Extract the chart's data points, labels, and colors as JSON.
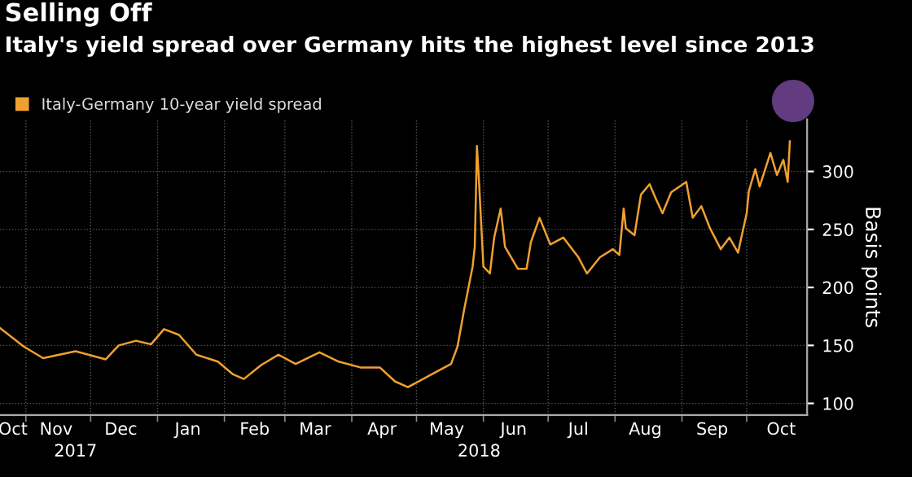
{
  "chart_data": {
    "type": "line",
    "title": "Selling Off",
    "subtitle": "Italy's yield spread over Germany hits the highest level since 2013",
    "ylabel": "Basis points",
    "x": [
      "2017-10-20",
      "2017-10-31",
      "2017-11-09",
      "2017-11-24",
      "2017-12-08",
      "2017-12-14",
      "2017-12-22",
      "2017-12-29",
      "2018-01-04",
      "2018-01-11",
      "2018-01-19",
      "2018-01-29",
      "2018-02-05",
      "2018-02-10",
      "2018-02-18",
      "2018-02-26",
      "2018-03-06",
      "2018-03-17",
      "2018-03-26",
      "2018-04-05",
      "2018-04-14",
      "2018-04-21",
      "2018-04-27",
      "2018-05-08",
      "2018-05-17",
      "2018-05-20",
      "2018-05-23",
      "2018-05-27",
      "2018-05-28",
      "2018-05-29",
      "2018-05-30",
      "2018-06-01",
      "2018-06-04",
      "2018-06-06",
      "2018-06-09",
      "2018-06-11",
      "2018-06-17",
      "2018-06-21",
      "2018-06-23",
      "2018-06-27",
      "2018-07-02",
      "2018-07-08",
      "2018-07-15",
      "2018-07-19",
      "2018-07-25",
      "2018-07-31",
      "2018-08-03",
      "2018-08-05",
      "2018-08-06",
      "2018-08-10",
      "2018-08-13",
      "2018-08-17",
      "2018-08-20",
      "2018-08-23",
      "2018-08-27",
      "2018-09-03",
      "2018-09-06",
      "2018-09-10",
      "2018-09-14",
      "2018-09-19",
      "2018-09-23",
      "2018-09-27",
      "2018-10-01",
      "2018-10-02",
      "2018-10-05",
      "2018-10-07",
      "2018-10-12",
      "2018-10-15",
      "2018-10-18",
      "2018-10-20",
      "2018-10-21"
    ],
    "series": [
      {
        "name": "Italy-Germany 10-year yield spread",
        "color": "#f0a030",
        "values": [
          165,
          149,
          139,
          145,
          138,
          150,
          154,
          151,
          164,
          159,
          142,
          136,
          125,
          121,
          133,
          142,
          134,
          144,
          136,
          131,
          131,
          119,
          114,
          125,
          134,
          149,
          180,
          218,
          235,
          322,
          290,
          218,
          212,
          243,
          268,
          235,
          216,
          216,
          239,
          260,
          237,
          243,
          226,
          212,
          226,
          233,
          228,
          268,
          251,
          245,
          280,
          289,
          276,
          264,
          282,
          291,
          260,
          270,
          251,
          233,
          243,
          230,
          264,
          283,
          302,
          287,
          316,
          297,
          310,
          291,
          326
        ]
      }
    ],
    "xlim": [
      "2017-10-20",
      "2018-10-29"
    ],
    "xticks": [
      {
        "value": "2017-10-26",
        "label": "Oct"
      },
      {
        "value": "2017-11-15",
        "label": "Nov"
      },
      {
        "value": "2017-12-15",
        "label": "Dec"
      },
      {
        "value": "2018-01-15",
        "label": "Jan"
      },
      {
        "value": "2018-02-15",
        "label": "Feb"
      },
      {
        "value": "2018-03-15",
        "label": "Mar"
      },
      {
        "value": "2018-04-15",
        "label": "Apr"
      },
      {
        "value": "2018-05-15",
        "label": "May"
      },
      {
        "value": "2018-06-15",
        "label": "Jun"
      },
      {
        "value": "2018-07-15",
        "label": "Jul"
      },
      {
        "value": "2018-08-15",
        "label": "Aug"
      },
      {
        "value": "2018-09-15",
        "label": "Sep"
      },
      {
        "value": "2018-10-17",
        "label": "Oct"
      },
      {
        "value": "2017-11-01",
        "label": null
      },
      {
        "value": "2017-12-01",
        "label": null
      },
      {
        "value": "2018-01-01",
        "label": null
      },
      {
        "value": "2018-02-01",
        "label": null
      },
      {
        "value": "2018-03-01",
        "label": null
      },
      {
        "value": "2018-04-01",
        "label": null
      },
      {
        "value": "2018-05-01",
        "label": null
      },
      {
        "value": "2018-06-01",
        "label": null
      },
      {
        "value": "2018-07-01",
        "label": null
      },
      {
        "value": "2018-08-01",
        "label": null
      },
      {
        "value": "2018-09-01",
        "label": null
      },
      {
        "value": "2018-10-01",
        "label": null
      }
    ],
    "x2lim": [
      "2017-10-20",
      "2018-10-29"
    ],
    "x2ticks": [
      {
        "value": "2017-11-24",
        "label": "2017"
      },
      {
        "value": "2018-05-30",
        "label": "2018"
      }
    ],
    "ylim": [
      90,
      345
    ],
    "yticks": [
      100,
      150,
      200,
      250,
      300
    ],
    "grid": true,
    "legend": "top left",
    "line_style": "solid",
    "marker": "none"
  }
}
